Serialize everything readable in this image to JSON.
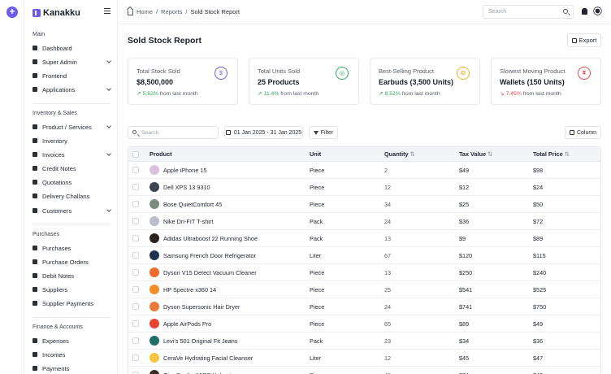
{
  "brand": {
    "name": "Kanakku"
  },
  "sidebar": {
    "sections": [
      {
        "title": "Main"
      },
      {
        "title": "Inventory & Sales"
      },
      {
        "title": "Purchases"
      },
      {
        "title": "Finance & Accounts"
      }
    ],
    "items": [
      {
        "label": "Dashboard",
        "icon": "grid-icon",
        "chevron": false
      },
      {
        "label": "Super Admin",
        "icon": "user-icon",
        "chevron": true
      },
      {
        "label": "Frontend",
        "icon": "layout-icon",
        "chevron": false
      },
      {
        "label": "Applications",
        "icon": "apps-icon",
        "chevron": true
      },
      {
        "label": "Product / Services",
        "icon": "box-icon",
        "chevron": true
      },
      {
        "label": "Inventory",
        "icon": "inventory-icon",
        "chevron": false
      },
      {
        "label": "Invoices",
        "icon": "invoice-icon",
        "chevron": true
      },
      {
        "label": "Credit Notes",
        "icon": "note-icon",
        "chevron": false
      },
      {
        "label": "Quotations",
        "icon": "quote-icon",
        "chevron": false
      },
      {
        "label": "Delivery Challans",
        "icon": "truck-icon",
        "chevron": false
      },
      {
        "label": "Customers",
        "icon": "users-icon",
        "chevron": true
      },
      {
        "label": "Purchases",
        "icon": "cart-icon",
        "chevron": false
      },
      {
        "label": "Purchase Orders",
        "icon": "order-icon",
        "chevron": false
      },
      {
        "label": "Debit Notes",
        "icon": "debit-icon",
        "chevron": false
      },
      {
        "label": "Suppliers",
        "icon": "supplier-icon",
        "chevron": false
      },
      {
        "label": "Supplier Payments",
        "icon": "payment-icon",
        "chevron": false
      },
      {
        "label": "Expenses",
        "icon": "expense-icon",
        "chevron": false
      },
      {
        "label": "Incomes",
        "icon": "income-icon",
        "chevron": false
      },
      {
        "label": "Payments",
        "icon": "wallet-icon",
        "chevron": false
      }
    ]
  },
  "topbar": {
    "breadcrumb": [
      "Home",
      "Reports",
      "Sold Stock Report"
    ],
    "search_placeholder": "Search"
  },
  "page": {
    "title": "Sold Stock Report",
    "export_label": "Export"
  },
  "cards": [
    {
      "label": "Total Stock Sold",
      "value": "$8,500,000",
      "change": "5.62%",
      "direction": "up",
      "suffix": "from last month",
      "icon": "dollar-icon",
      "color": "#6c5ce7"
    },
    {
      "label": "Total Units Sold",
      "value": "25 Products",
      "change": "11.4%",
      "direction": "up",
      "suffix": "from last month",
      "icon": "bag-icon",
      "color": "#2eaa5c"
    },
    {
      "label": "Best-Selling Product",
      "value": "Earbuds (3,500 Units)",
      "change": "8.52%",
      "direction": "up",
      "suffix": "from last month",
      "icon": "award-icon",
      "color": "#f0b429"
    },
    {
      "label": "Slowest Moving Product",
      "value": "Wallets (150 Units)",
      "change": "7.45%",
      "direction": "down",
      "suffix": "from last month",
      "icon": "hourglass-icon",
      "color": "#e5484d"
    }
  ],
  "toolbar": {
    "search_placeholder": "Search",
    "date_range": "01 Jan 2025 - 31 Jan 2025",
    "filter_label": "Filter",
    "column_label": "Column"
  },
  "table": {
    "headers": {
      "product": "Product",
      "unit": "Unit",
      "quantity": "Quantity",
      "tax": "Tax Value",
      "total": "Total Price",
      "sort": "⇅"
    },
    "rows": [
      {
        "product": "Apple iPhone 15",
        "unit": "Piece",
        "quantity": "2",
        "tax": "$49",
        "total": "$98",
        "color": "#d9c2dd"
      },
      {
        "product": "Dell XPS 13 9310",
        "unit": "Piece",
        "quantity": "12",
        "tax": "$12",
        "total": "$24",
        "color": "#3c4454"
      },
      {
        "product": "Bose QuietComfort 45",
        "unit": "Piece",
        "quantity": "34",
        "tax": "$25",
        "total": "$50",
        "color": "#7a8a80"
      },
      {
        "product": "Nike Dri-FIT T-shirt",
        "unit": "Pack",
        "quantity": "24",
        "tax": "$36",
        "total": "$72",
        "color": "#b9bec8"
      },
      {
        "product": "Adidas Ultraboost 22 Running Shoe",
        "unit": "Pack",
        "quantity": "13",
        "tax": "$9",
        "total": "$89",
        "color": "#2b2320"
      },
      {
        "product": "Samsung French Door Refrigerator",
        "unit": "Liter",
        "quantity": "67",
        "tax": "$120",
        "total": "$115",
        "color": "#1d3350"
      },
      {
        "product": "Dyson V15 Detect  Vacuum Cleaner",
        "unit": "Piece",
        "quantity": "13",
        "tax": "$250",
        "total": "$240",
        "color": "#ef6a2c"
      },
      {
        "product": "HP Spectre x360 14",
        "unit": "Piece",
        "quantity": "25",
        "tax": "$541",
        "total": "$525",
        "color": "#f28c28"
      },
      {
        "product": "Dyson Supersonic Hair Dryer",
        "unit": "Piece",
        "quantity": "24",
        "tax": "$741",
        "total": "$750",
        "color": "#e87a3a"
      },
      {
        "product": "Apple AirPods Pro",
        "unit": "Piece",
        "quantity": "65",
        "tax": "$89",
        "total": "$49",
        "color": "#ea4335"
      },
      {
        "product": "Levi's 501 Original Fit Jeans",
        "unit": "Pack",
        "quantity": "23",
        "tax": "$34",
        "total": "$36",
        "color": "#1f6e6a"
      },
      {
        "product": "CeraVe Hydrating Facial Cleanser",
        "unit": "Liter",
        "quantity": "12",
        "tax": "$45",
        "total": "$47",
        "color": "#f5c542"
      },
      {
        "product": "Giro Synthe MIPS Helmet",
        "unit": "Piece",
        "quantity": "43",
        "tax": "$74",
        "total": "$43",
        "color": "#3a2a22"
      }
    ]
  }
}
